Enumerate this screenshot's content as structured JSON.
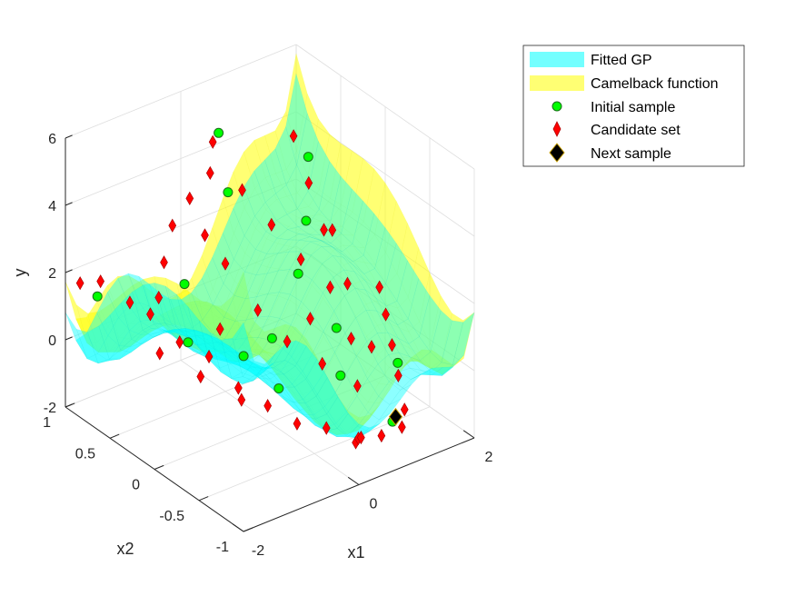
{
  "chart_data": {
    "type": "surface3d",
    "xlabel": "x1",
    "ylabel": "x2",
    "zlabel": "y",
    "xlim": [
      -2,
      2
    ],
    "ylim": [
      -1,
      1
    ],
    "zlim": [
      -2,
      6
    ],
    "xticks": [
      "-2",
      "0",
      "2"
    ],
    "yticks": [
      "-1",
      "-0.5",
      "0",
      "0.5",
      "1"
    ],
    "zticks": [
      "-2",
      "0",
      "2",
      "4",
      "6"
    ],
    "grid": true,
    "legend_position": "top-right",
    "legend": [
      {
        "label": "Fitted GP",
        "kind": "surface",
        "color": "#00ffff"
      },
      {
        "label": "Camelback function",
        "kind": "surface",
        "color": "#ffff00"
      },
      {
        "label": "Initial sample",
        "kind": "circle",
        "color": "#00ff00"
      },
      {
        "label": "Candidate set",
        "kind": "diamond",
        "color": "#ff0000"
      },
      {
        "label": "Next sample",
        "kind": "diamond",
        "color": "#000000"
      }
    ],
    "series": [
      {
        "name": "Fitted GP",
        "type": "surface",
        "color": "#00ffff",
        "opacity": 0.45
      },
      {
        "name": "Camelback function",
        "type": "surface",
        "color": "#ffff00",
        "opacity": 0.55
      },
      {
        "name": "Initial sample",
        "type": "scatter3",
        "color": "#00ff00",
        "points": [
          [
            -1.6,
            0.9,
            1.2
          ],
          [
            -0.8,
            0.4,
            0.2
          ],
          [
            -0.3,
            0.1,
            0.0
          ],
          [
            0.0,
            -0.1,
            -0.8
          ],
          [
            0.2,
            0.6,
            3.6
          ],
          [
            0.5,
            0.9,
            4.6
          ],
          [
            0.8,
            0.2,
            1.5
          ],
          [
            1.2,
            -0.6,
            -1.7
          ],
          [
            1.4,
            0.5,
            2.1
          ],
          [
            1.0,
            -0.1,
            0.3
          ],
          [
            1.6,
            -0.4,
            -0.6
          ],
          [
            -0.4,
            0.7,
            1.1
          ],
          [
            0.5,
            0.3,
            -0.4
          ],
          [
            0.3,
            -0.6,
            0.3
          ],
          [
            1.9,
            0.8,
            3.1
          ]
        ]
      },
      {
        "name": "Candidate set",
        "type": "scatter3",
        "color": "#ff0000",
        "points": [
          [
            -1.9,
            0.9,
            1.8
          ],
          [
            -1.7,
            0.8,
            1.9
          ],
          [
            -1.5,
            0.6,
            1.5
          ],
          [
            -1.3,
            0.5,
            1.2
          ],
          [
            -1.1,
            0.3,
            0.6
          ],
          [
            -0.9,
            0.1,
            0.4
          ],
          [
            -0.7,
            -0.1,
            -0.3
          ],
          [
            -0.5,
            -0.3,
            -0.6
          ],
          [
            -0.3,
            -0.5,
            -0.9
          ],
          [
            -0.1,
            -0.7,
            -0.8
          ],
          [
            0.1,
            -0.9,
            -1.0
          ],
          [
            0.3,
            -0.8,
            -1.2
          ],
          [
            0.5,
            -0.7,
            -1.5
          ],
          [
            0.7,
            -0.8,
            -1.4
          ],
          [
            0.9,
            -0.9,
            -1.1
          ],
          [
            1.1,
            -0.8,
            -0.9
          ],
          [
            1.3,
            -0.6,
            -0.4
          ],
          [
            1.5,
            -0.4,
            0.0
          ],
          [
            1.7,
            -0.2,
            0.4
          ],
          [
            1.9,
            0.0,
            0.7
          ],
          [
            -1.6,
            0.2,
            0.8
          ],
          [
            -1.2,
            0.0,
            0.2
          ],
          [
            -0.8,
            -0.2,
            -0.4
          ],
          [
            -0.4,
            0.3,
            0.5
          ],
          [
            0.0,
            0.5,
            1.8
          ],
          [
            0.2,
            0.8,
            3.8
          ],
          [
            0.4,
            0.9,
            4.4
          ],
          [
            0.6,
            0.7,
            3.2
          ],
          [
            0.8,
            0.5,
            2.4
          ],
          [
            1.0,
            0.3,
            1.6
          ],
          [
            1.2,
            0.1,
            1.0
          ],
          [
            1.4,
            0.3,
            2.2
          ],
          [
            1.6,
            0.6,
            2.9
          ],
          [
            1.8,
            0.9,
            3.6
          ],
          [
            -0.2,
            0.6,
            2.6
          ],
          [
            0.1,
            0.2,
            0.9
          ],
          [
            0.3,
            0.0,
            0.2
          ],
          [
            0.6,
            -0.2,
            -0.3
          ],
          [
            0.9,
            -0.4,
            -0.8
          ],
          [
            1.1,
            -0.2,
            0.1
          ],
          [
            -1.0,
            0.6,
            1.3
          ],
          [
            -0.6,
            0.8,
            1.7
          ],
          [
            -0.3,
            0.9,
            2.4
          ],
          [
            0.0,
            0.9,
            3.0
          ],
          [
            0.7,
            0.0,
            0.6
          ],
          [
            1.3,
            -0.3,
            -0.1
          ],
          [
            1.5,
            0.1,
            0.9
          ],
          [
            1.7,
            0.4,
            1.8
          ]
        ]
      },
      {
        "name": "Next sample",
        "type": "scatter3",
        "color": "#000000",
        "points": [
          [
            1.1,
            -0.7,
            -1.3
          ]
        ]
      }
    ]
  }
}
